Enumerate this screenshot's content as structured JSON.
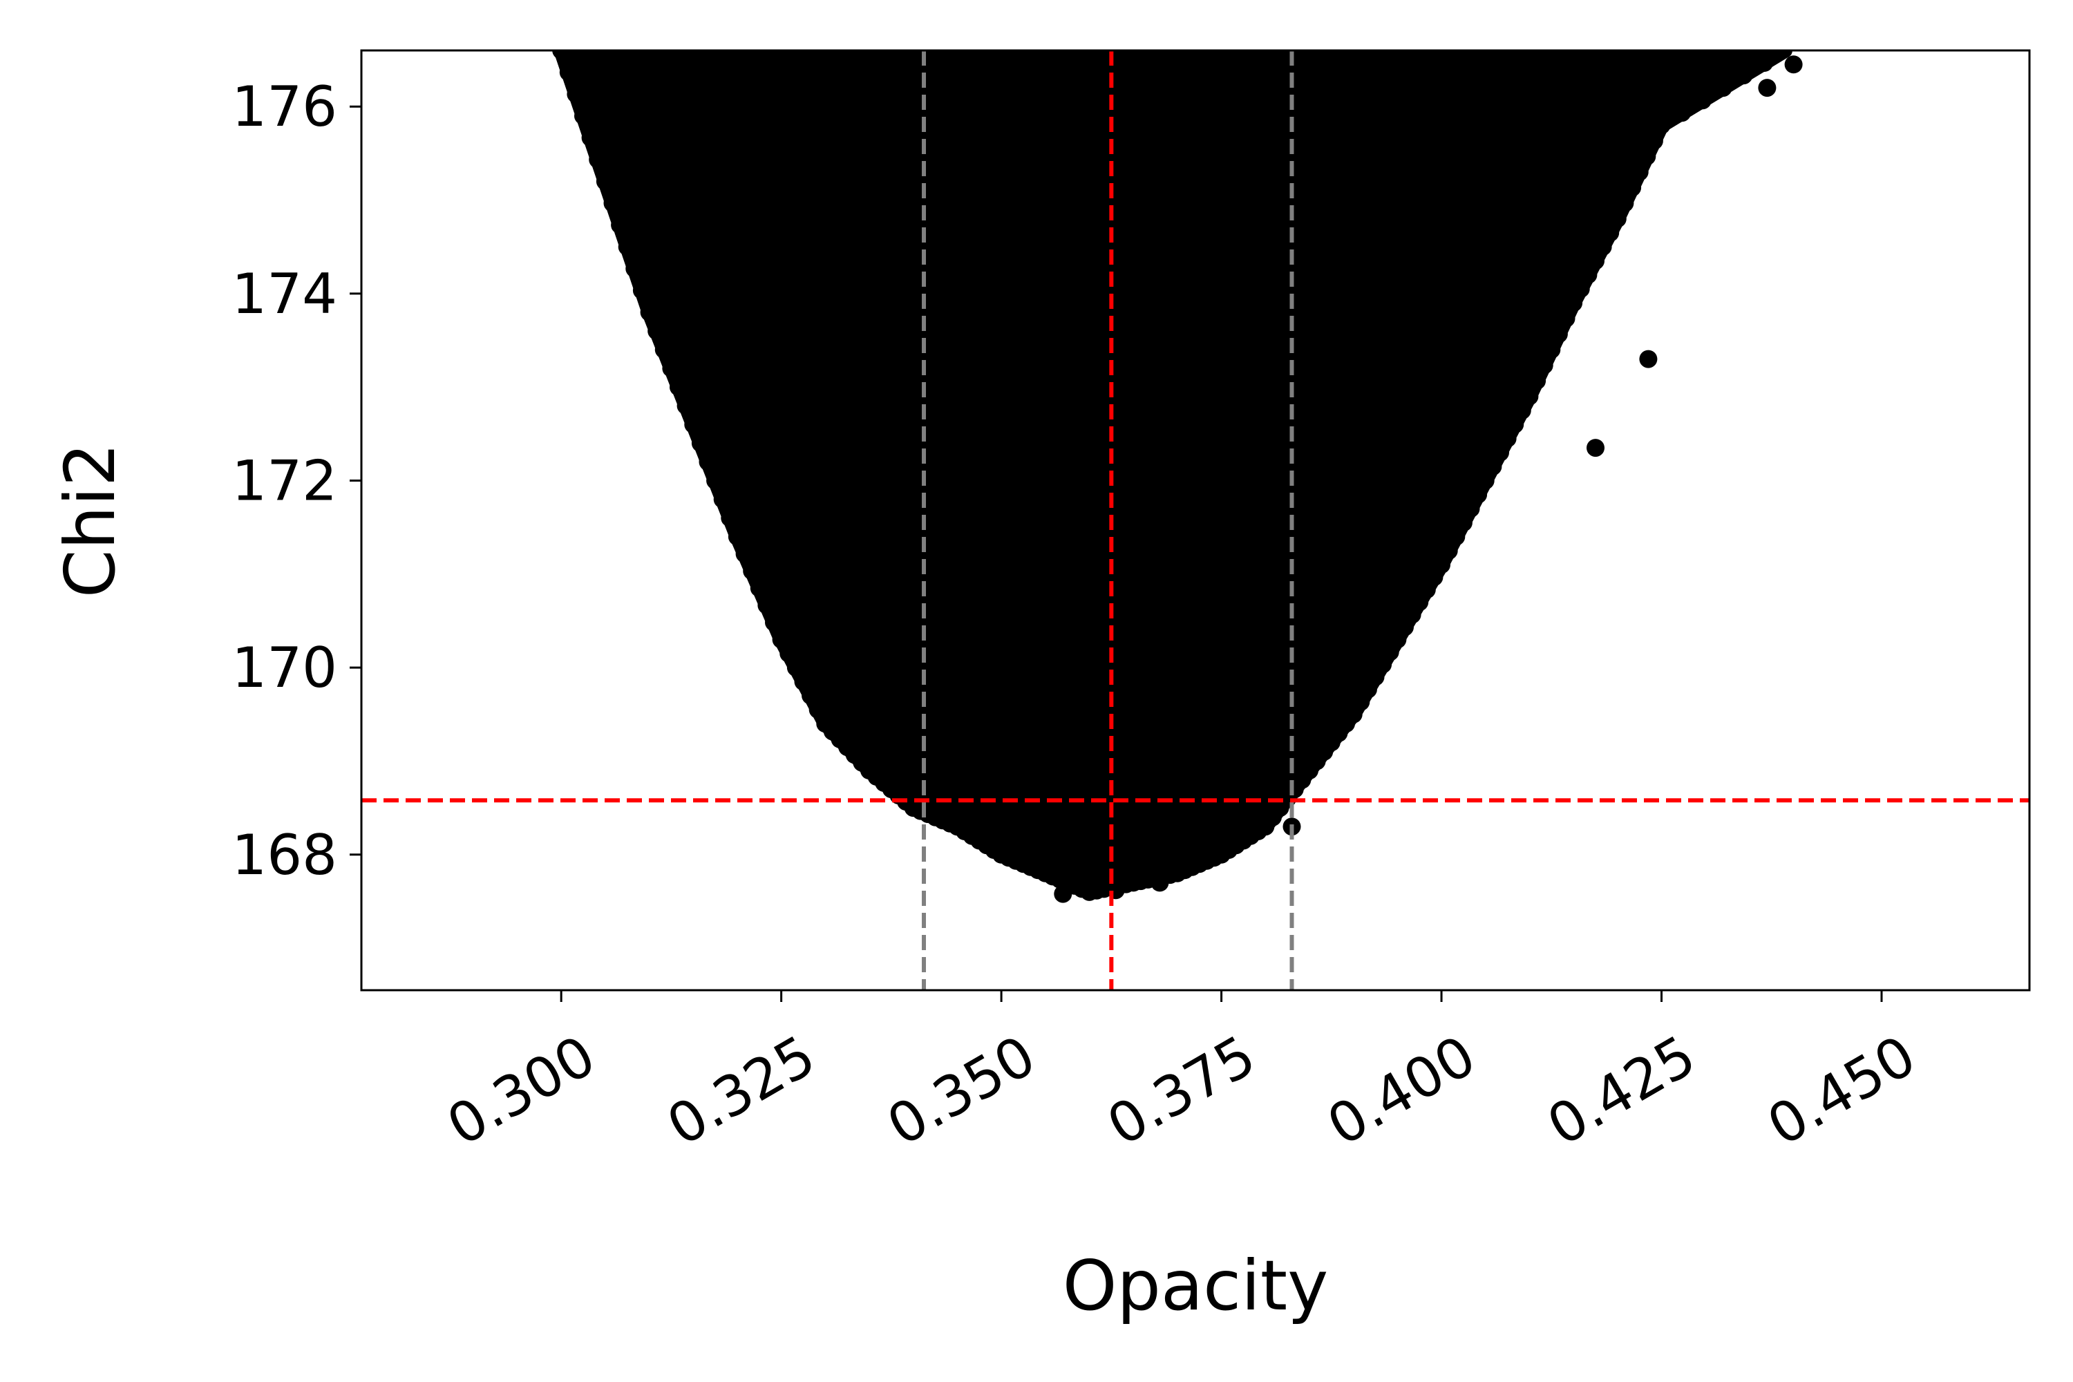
{
  "chart_data": {
    "type": "scatter",
    "title": "",
    "xlabel": "Opacity",
    "ylabel": "Chi2",
    "xlim": [
      0.2773,
      0.4668
    ],
    "ylim": [
      166.55,
      176.6
    ],
    "xticks": [
      0.3,
      0.325,
      0.35,
      0.375,
      0.4,
      0.425,
      0.45
    ],
    "xtick_labels": [
      "0.300",
      "0.325",
      "0.350",
      "0.375",
      "0.400",
      "0.425",
      "0.450"
    ],
    "yticks": [
      168,
      170,
      172,
      174,
      176
    ],
    "ytick_labels": [
      "168",
      "170",
      "172",
      "174",
      "176"
    ],
    "grid": false,
    "legend": "none",
    "point_color": "#000000",
    "description_of_point_cloud": {
      "shape": "parabolic band of many samples filling the region above the minimum chi2 curve",
      "lower_envelope": [
        {
          "x": 0.3,
          "y": 176.6
        },
        {
          "x": 0.305,
          "y": 175.2
        },
        {
          "x": 0.31,
          "y": 173.8
        },
        {
          "x": 0.315,
          "y": 172.6
        },
        {
          "x": 0.32,
          "y": 171.4
        },
        {
          "x": 0.325,
          "y": 170.3
        },
        {
          "x": 0.33,
          "y": 169.4
        },
        {
          "x": 0.335,
          "y": 168.9
        },
        {
          "x": 0.34,
          "y": 168.5
        },
        {
          "x": 0.345,
          "y": 168.3
        },
        {
          "x": 0.35,
          "y": 168.0
        },
        {
          "x": 0.355,
          "y": 167.8
        },
        {
          "x": 0.36,
          "y": 167.6
        },
        {
          "x": 0.365,
          "y": 167.7
        },
        {
          "x": 0.37,
          "y": 167.8
        },
        {
          "x": 0.375,
          "y": 168.0
        },
        {
          "x": 0.38,
          "y": 168.3
        },
        {
          "x": 0.385,
          "y": 168.9
        },
        {
          "x": 0.39,
          "y": 169.5
        },
        {
          "x": 0.395,
          "y": 170.3
        },
        {
          "x": 0.4,
          "y": 171.1
        },
        {
          "x": 0.405,
          "y": 172.0
        },
        {
          "x": 0.41,
          "y": 172.9
        },
        {
          "x": 0.415,
          "y": 173.9
        },
        {
          "x": 0.42,
          "y": 174.8
        },
        {
          "x": 0.425,
          "y": 175.8
        },
        {
          "x": 0.439,
          "y": 176.6
        }
      ],
      "upper_envelope": [
        {
          "x": 0.298,
          "y": 176.6
        },
        {
          "x": 0.439,
          "y": 176.6
        }
      ],
      "sample_points": [
        {
          "x": 0.357,
          "y": 167.58
        },
        {
          "x": 0.363,
          "y": 167.62
        },
        {
          "x": 0.368,
          "y": 167.7
        },
        {
          "x": 0.345,
          "y": 168.3
        },
        {
          "x": 0.383,
          "y": 168.3
        },
        {
          "x": 0.4175,
          "y": 172.35
        },
        {
          "x": 0.4235,
          "y": 173.3
        },
        {
          "x": 0.437,
          "y": 176.2
        },
        {
          "x": 0.44,
          "y": 176.45
        }
      ]
    },
    "reference_lines": [
      {
        "orientation": "vertical",
        "x": 0.3412,
        "color": "#808080",
        "style": "dashed"
      },
      {
        "orientation": "vertical",
        "x": 0.383,
        "color": "#808080",
        "style": "dashed"
      },
      {
        "orientation": "vertical",
        "x": 0.3625,
        "color": "#ff0000",
        "style": "dashed"
      },
      {
        "orientation": "horizontal",
        "y": 168.58,
        "color": "#ff0000",
        "style": "dashed"
      }
    ]
  }
}
